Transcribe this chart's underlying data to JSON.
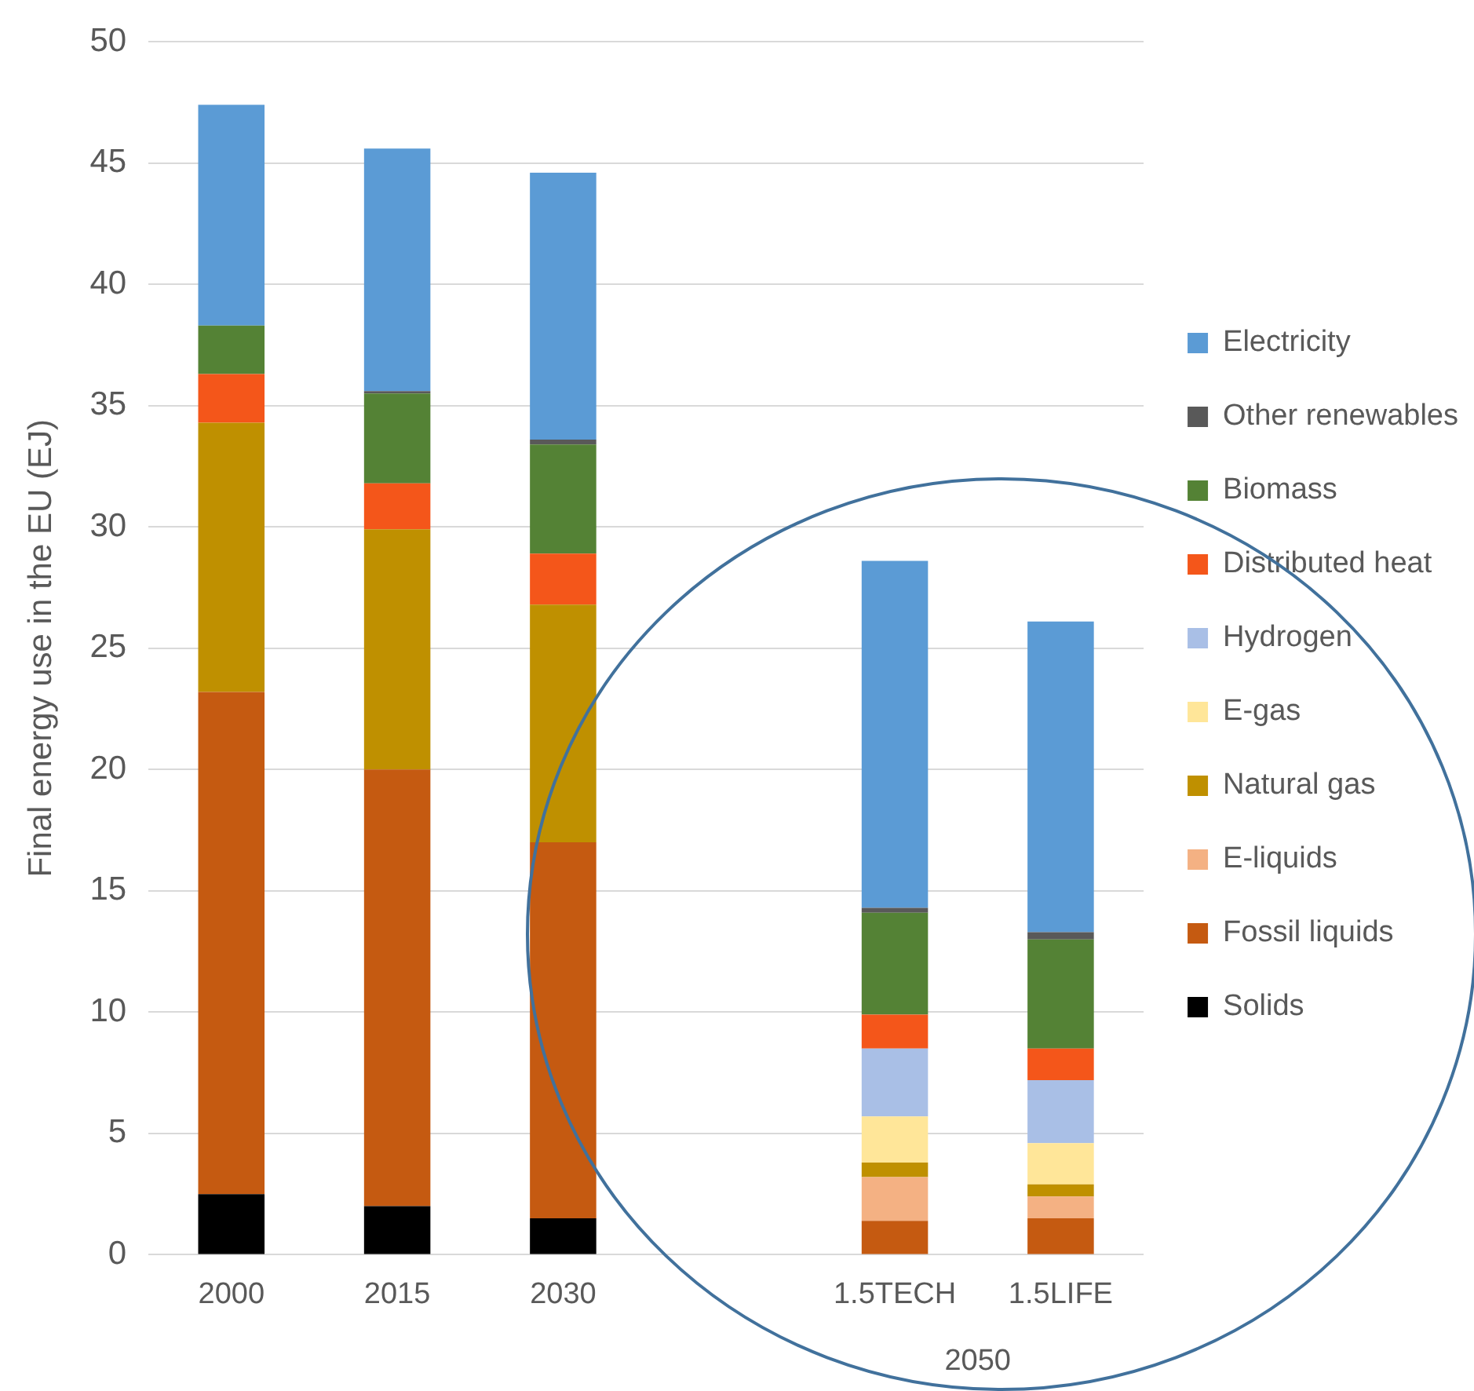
{
  "chart_data": {
    "type": "bar",
    "stacked": true,
    "ylabel": "Final energy use in the EU (EJ)",
    "categories": [
      "2000",
      "2015",
      "2030",
      null,
      "1.5TECH",
      "1.5LIFE"
    ],
    "series": [
      {
        "name": "Solids",
        "color": "#000000",
        "values": [
          2.5,
          2.0,
          1.5,
          null,
          0,
          0
        ]
      },
      {
        "name": "Fossil liquids",
        "color": "#c55a11",
        "values": [
          20.7,
          18.0,
          15.5,
          null,
          1.4,
          1.5
        ]
      },
      {
        "name": "E-liquids",
        "color": "#f4b183",
        "values": [
          0,
          0,
          0,
          null,
          1.8,
          0.9
        ]
      },
      {
        "name": "Natural gas",
        "color": "#bf9000",
        "values": [
          11.1,
          9.9,
          9.8,
          null,
          0.6,
          0.5
        ]
      },
      {
        "name": "E-gas",
        "color": "#ffe699",
        "values": [
          0,
          0,
          0,
          null,
          1.9,
          1.7
        ]
      },
      {
        "name": "Hydrogen",
        "color": "#a9bfe6",
        "values": [
          0,
          0,
          0,
          null,
          2.8,
          2.6
        ]
      },
      {
        "name": "Distributed heat",
        "color": "#f4561a",
        "values": [
          2.0,
          1.9,
          2.1,
          null,
          1.4,
          1.3
        ]
      },
      {
        "name": "Biomass",
        "color": "#548235",
        "values": [
          2.0,
          3.7,
          4.5,
          null,
          4.2,
          4.5
        ]
      },
      {
        "name": "Other renewables",
        "color": "#595959",
        "values": [
          0,
          0.1,
          0.2,
          null,
          0.2,
          0.3
        ]
      },
      {
        "name": "Electricity",
        "color": "#5b9bd5",
        "values": [
          9.1,
          10.0,
          11.0,
          null,
          14.3,
          12.8
        ]
      }
    ],
    "ylim": [
      0,
      50
    ],
    "yticks": [
      0,
      5,
      10,
      15,
      20,
      25,
      30,
      35,
      40,
      45,
      50
    ],
    "grid": "y",
    "legend": "right",
    "annotations": [
      "2050"
    ]
  }
}
